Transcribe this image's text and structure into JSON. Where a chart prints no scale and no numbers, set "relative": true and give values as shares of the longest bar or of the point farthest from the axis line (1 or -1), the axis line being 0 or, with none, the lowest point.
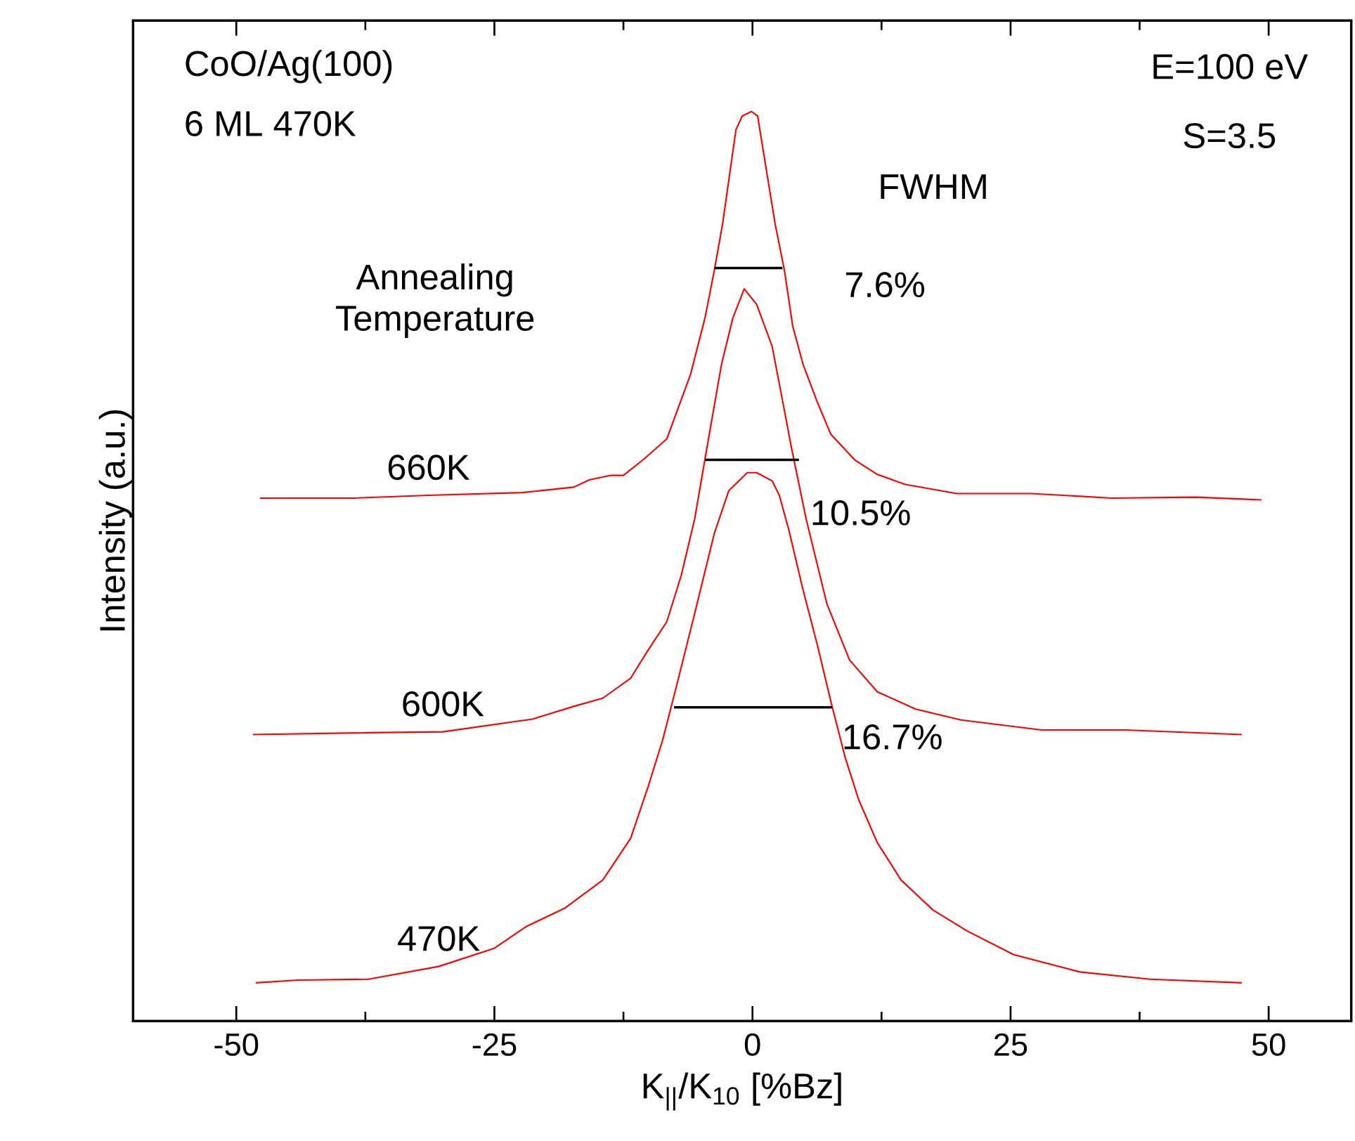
{
  "chart_data": {
    "type": "line",
    "relative": true,
    "marker": "none",
    "xlabel": "K$_{||}$/K$_{10}$ [%Bz]",
    "ylabel": "Intensity (a.u.)",
    "xlim": [
      -60,
      58
    ],
    "xticks": [
      -50,
      -25,
      0,
      25,
      50
    ],
    "series": [
      {
        "name": "660K",
        "color": "#ff0000",
        "x": [
          -47.7,
          -38.6,
          -31.4,
          -22.3,
          -17.3,
          -15.8,
          -13.7,
          -12.5,
          -10.5,
          -8.3,
          -6.0,
          -4.6,
          -3.7,
          -2.9,
          -1.6,
          -1.0,
          -0.1,
          0.5,
          2.2,
          3.1,
          3.9,
          4.9,
          6.3,
          7.6,
          9.9,
          12.1,
          14.8,
          19.8,
          27.0,
          34.8,
          42.9,
          49.3
        ],
        "values": [
          0.575,
          0.575,
          0.578,
          0.581,
          0.587,
          0.595,
          0.6,
          0.6,
          0.618,
          0.64,
          0.711,
          0.773,
          0.825,
          0.876,
          0.98,
          0.995,
          1.0,
          0.995,
          0.876,
          0.825,
          0.764,
          0.722,
          0.68,
          0.645,
          0.617,
          0.601,
          0.59,
          0.58,
          0.58,
          0.575,
          0.576,
          0.573
        ]
      },
      {
        "name": "600K",
        "color": "#ff0000",
        "x": [
          -48.4,
          -37.2,
          -30.0,
          -21.3,
          -17.3,
          -14.5,
          -11.8,
          -10.1,
          -8.3,
          -6.9,
          -5.6,
          -4.6,
          -3.0,
          -1.9,
          -0.8,
          0.4,
          1.9,
          3.1,
          3.8,
          5.2,
          7.2,
          9.4,
          12.1,
          15.8,
          20.2,
          28.0,
          36.1,
          47.4
        ],
        "values": [
          0.315,
          0.317,
          0.318,
          0.332,
          0.346,
          0.355,
          0.377,
          0.408,
          0.439,
          0.49,
          0.552,
          0.618,
          0.722,
          0.773,
          0.805,
          0.788,
          0.742,
          0.671,
          0.629,
          0.552,
          0.459,
          0.397,
          0.362,
          0.343,
          0.331,
          0.32,
          0.32,
          0.315
        ]
      },
      {
        "name": "470K",
        "color": "#ff0000",
        "x": [
          -48.1,
          -44.0,
          -37.2,
          -30.4,
          -25.0,
          -21.9,
          -18.2,
          -14.5,
          -11.8,
          -10.1,
          -8.7,
          -7.3,
          -5.6,
          -3.7,
          -2.3,
          -0.5,
          0.4,
          1.9,
          2.6,
          3.5,
          4.9,
          6.3,
          7.6,
          9.0,
          10.3,
          12.1,
          14.4,
          17.5,
          20.8,
          25.3,
          31.7,
          38.5,
          47.4
        ],
        "values": [
          0.042,
          0.045,
          0.046,
          0.06,
          0.08,
          0.104,
          0.124,
          0.155,
          0.201,
          0.258,
          0.309,
          0.371,
          0.448,
          0.536,
          0.583,
          0.603,
          0.603,
          0.594,
          0.578,
          0.541,
          0.474,
          0.413,
          0.351,
          0.289,
          0.243,
          0.196,
          0.155,
          0.122,
          0.099,
          0.073,
          0.054,
          0.046,
          0.042
        ]
      },
      {
        "color": "#000000",
        "x": [
          -3.7,
          2.9
        ],
        "values": [
          0.828,
          0.828
        ]
      },
      {
        "color": "#000000",
        "x": [
          -4.6,
          4.5
        ],
        "values": [
          0.617,
          0.617
        ]
      },
      {
        "color": "#000000",
        "x": [
          -7.6,
          7.7
        ],
        "values": [
          0.345,
          0.345
        ]
      }
    ],
    "annotations": [
      "CoO/Ag(100)",
      "6 ML 470K",
      "E=100 eV",
      "S=3.5",
      "FWHM",
      "Annealing Temperature",
      "7.6%",
      "10.5%",
      "16.7%"
    ]
  }
}
